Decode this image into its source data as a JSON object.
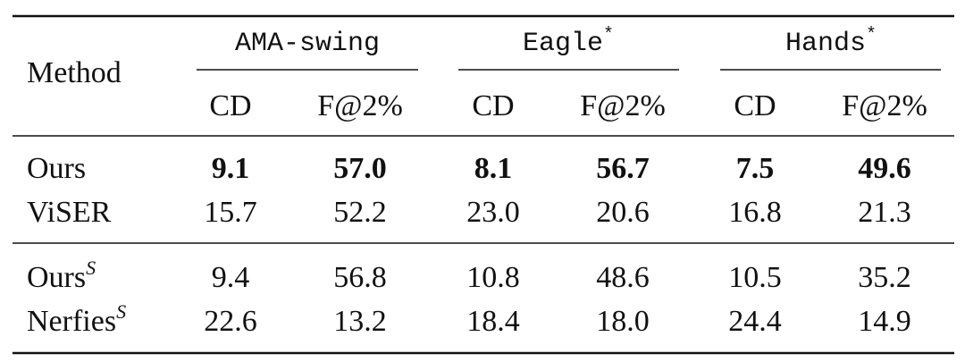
{
  "header": {
    "method": "Method",
    "groups": [
      {
        "name": "AMA-swing"
      },
      {
        "name": "Eagle",
        "mark": "*"
      },
      {
        "name": "Hands",
        "mark": "*"
      }
    ],
    "metrics": [
      "CD",
      "F@2%",
      "CD",
      "F@2%",
      "CD",
      "F@2%"
    ]
  },
  "sections": [
    {
      "rows": [
        {
          "method": "Ours",
          "bold": true,
          "values": [
            "9.1",
            "57.0",
            "8.1",
            "56.7",
            "7.5",
            "49.6"
          ]
        },
        {
          "method": "ViSER",
          "values": [
            "15.7",
            "52.2",
            "23.0",
            "20.6",
            "16.8",
            "21.3"
          ]
        }
      ]
    },
    {
      "rows": [
        {
          "method": "Ours",
          "sup": "S",
          "values": [
            "9.4",
            "56.8",
            "10.8",
            "48.6",
            "10.5",
            "35.2"
          ]
        },
        {
          "method": "Nerfies",
          "sup": "S",
          "values": [
            "22.6",
            "13.2",
            "18.4",
            "18.0",
            "24.4",
            "14.9"
          ]
        }
      ]
    }
  ]
}
